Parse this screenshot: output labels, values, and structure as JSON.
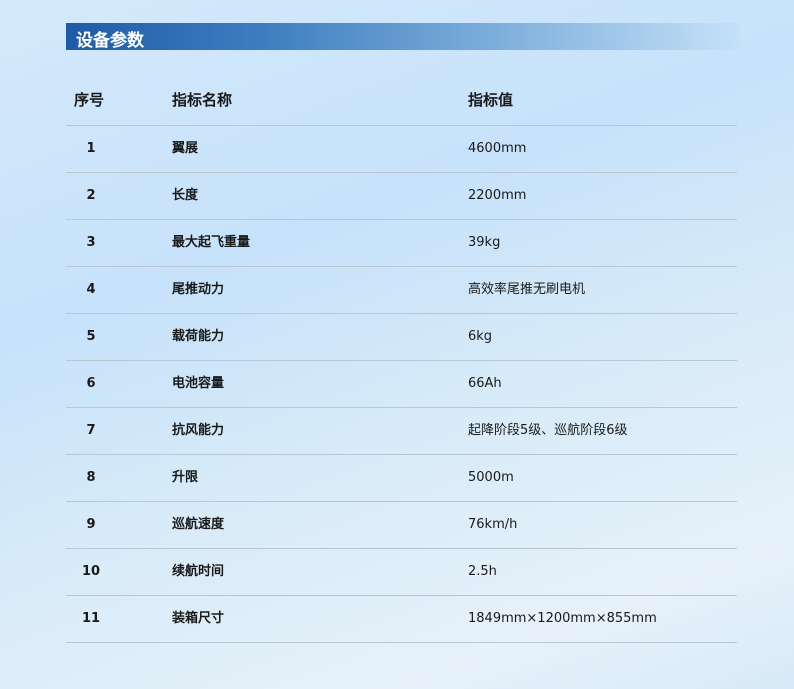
{
  "title": "设备参数",
  "table": {
    "headers": [
      "序号",
      "指标名称",
      "指标值"
    ],
    "rows": [
      [
        "1",
        "翼展",
        "4600mm"
      ],
      [
        "2",
        "长度",
        "2200mm"
      ],
      [
        "3",
        "最大起飞重量",
        "39kg"
      ],
      [
        "4",
        "尾推动力",
        "高效率尾推无刷电机"
      ],
      [
        "5",
        "载荷能力",
        "6kg"
      ],
      [
        "6",
        "电池容量",
        "66Ah"
      ],
      [
        "7",
        "抗风能力",
        "起降阶段5级、巡航阶段6级"
      ],
      [
        "8",
        "升限",
        "5000m"
      ],
      [
        "9",
        "巡航速度",
        "76km/h"
      ],
      [
        "10",
        "续航时间",
        "2.5h"
      ],
      [
        "11",
        "装箱尺寸",
        "1849mm×1200mm×855mm"
      ]
    ]
  }
}
